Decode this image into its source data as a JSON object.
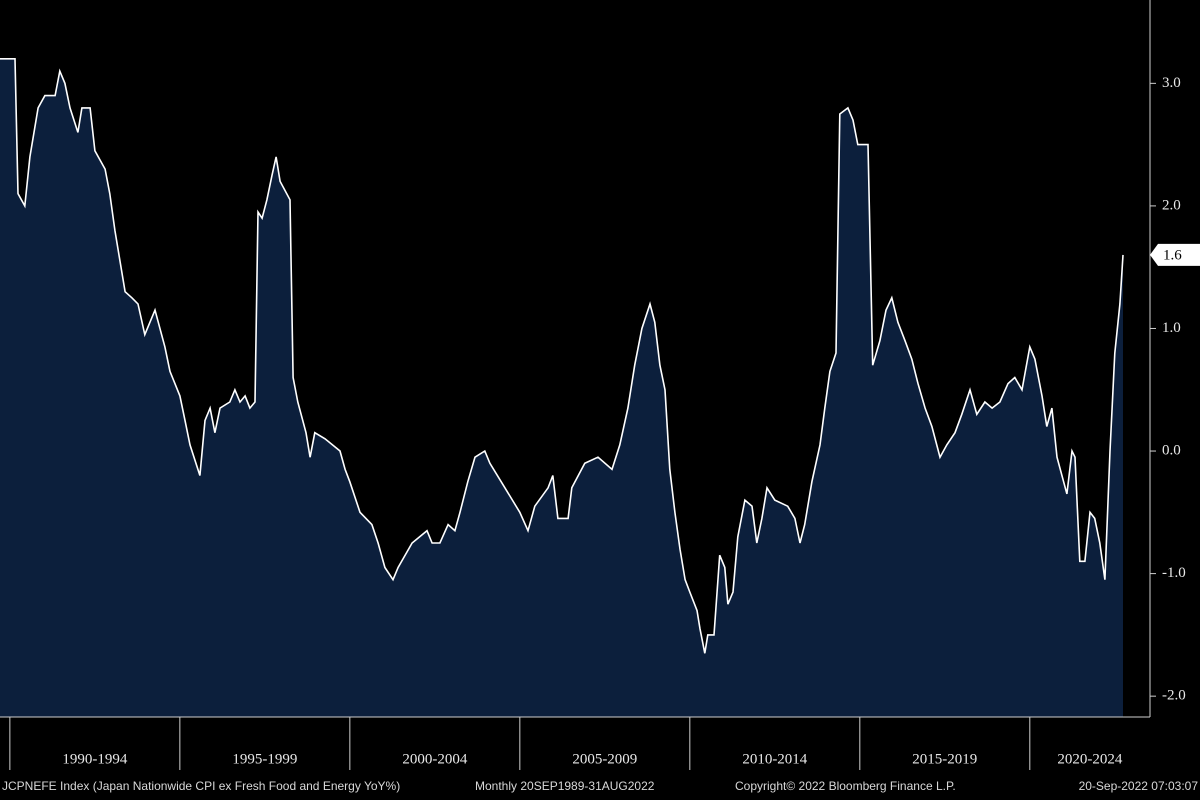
{
  "chart_data": {
    "type": "area",
    "source": "JCPNEFE Index (Japan Nationwide CPI ex Fresh Food and Energy YoY%)",
    "period": "Monthly 20SEP1989-31AUG2022",
    "copyright": "Copyright© 2022 Bloomberg Finance L.P.",
    "timestamp": "20-Sep-2022 07:03:07",
    "xlim": [
      1989.71,
      2022.8
    ],
    "xticks": [
      {
        "value": 1990,
        "label": "1990-1994"
      },
      {
        "value": 1995,
        "label": "1995-1999"
      },
      {
        "value": 2000,
        "label": "2000-2004"
      },
      {
        "value": 2005,
        "label": "2005-2009"
      },
      {
        "value": 2010,
        "label": "2010-2014"
      },
      {
        "value": 2015,
        "label": "2015-2019"
      },
      {
        "value": 2020,
        "label": "2020-2024"
      }
    ],
    "ylim": [
      -2.17,
      3.68
    ],
    "yticks": [
      {
        "value": -2,
        "label": "-2.0"
      },
      {
        "value": -1,
        "label": "-1.0"
      },
      {
        "value": 0,
        "label": "0.0"
      },
      {
        "value": 1,
        "label": "1.0"
      },
      {
        "value": 2,
        "label": "2.0"
      },
      {
        "value": 3,
        "label": "3.0"
      }
    ],
    "series": [
      {
        "color": "#0c1f3c",
        "line_color": "#ffffff",
        "x": [
          1989.71,
          1990.15,
          1990.24,
          1990.44,
          1990.59,
          1990.83,
          1991.03,
          1991.33,
          1991.47,
          1991.62,
          1991.77,
          1992.0,
          1992.12,
          1992.36,
          1992.5,
          1992.8,
          1992.94,
          1993.09,
          1993.24,
          1993.39,
          1993.59,
          1993.77,
          1993.97,
          1994.27,
          1994.56,
          1994.71,
          1995.0,
          1995.15,
          1995.3,
          1995.59,
          1995.74,
          1995.89,
          1996.03,
          1996.18,
          1996.47,
          1996.62,
          1996.77,
          1996.92,
          1997.06,
          1997.21,
          1997.3,
          1997.42,
          1997.56,
          1997.71,
          1997.83,
          1997.95,
          1998.24,
          1998.33,
          1998.47,
          1998.71,
          1998.83,
          1998.97,
          1999.27,
          1999.71,
          1999.86,
          2000.0,
          2000.3,
          2000.65,
          2000.83,
          2001.03,
          2001.27,
          2001.42,
          2001.83,
          2002.27,
          2002.42,
          2002.65,
          2002.89,
          2003.09,
          2003.24,
          2003.47,
          2003.68,
          2003.97,
          2004.12,
          2004.56,
          2005.0,
          2005.24,
          2005.44,
          2005.83,
          2005.97,
          2006.12,
          2006.42,
          2006.53,
          2006.91,
          2007.3,
          2007.71,
          2007.94,
          2008.18,
          2008.38,
          2008.59,
          2008.83,
          2008.97,
          2009.12,
          2009.27,
          2009.41,
          2009.56,
          2009.71,
          2009.86,
          2010.0,
          2010.21,
          2010.3,
          2010.44,
          2010.53,
          2010.71,
          2010.88,
          2011.03,
          2011.12,
          2011.27,
          2011.41,
          2011.62,
          2011.83,
          2011.97,
          2012.12,
          2012.27,
          2012.5,
          2012.88,
          2013.09,
          2013.24,
          2013.38,
          2013.59,
          2013.83,
          2013.97,
          2014.12,
          2014.3,
          2014.41,
          2014.65,
          2014.8,
          2014.94,
          2015.24,
          2015.38,
          2015.59,
          2015.77,
          2015.94,
          2016.12,
          2016.33,
          2016.53,
          2016.71,
          2016.92,
          2017.12,
          2017.36,
          2017.56,
          2017.8,
          2018.0,
          2018.24,
          2018.44,
          2018.68,
          2018.89,
          2019.12,
          2019.36,
          2019.56,
          2019.77,
          2020.0,
          2020.15,
          2020.36,
          2020.5,
          2020.65,
          2020.8,
          2021.09,
          2021.24,
          2021.33,
          2021.47,
          2021.62,
          2021.77,
          2021.91,
          2022.06,
          2022.21,
          2022.36,
          2022.5,
          2022.65,
          2022.74
        ],
        "values": [
          3.2,
          3.2,
          2.1,
          2.0,
          2.4,
          2.8,
          2.9,
          2.9,
          3.1,
          3.0,
          2.8,
          2.6,
          2.8,
          2.8,
          2.45,
          2.3,
          2.1,
          1.8,
          1.55,
          1.3,
          1.25,
          1.2,
          0.95,
          1.15,
          0.85,
          0.65,
          0.45,
          0.25,
          0.05,
          -0.2,
          0.25,
          0.35,
          0.15,
          0.35,
          0.4,
          0.5,
          0.4,
          0.45,
          0.35,
          0.4,
          1.95,
          1.9,
          2.05,
          2.25,
          2.4,
          2.2,
          2.05,
          0.6,
          0.4,
          0.15,
          -0.05,
          0.15,
          0.1,
          0.0,
          -0.15,
          -0.25,
          -0.5,
          -0.6,
          -0.75,
          -0.95,
          -1.05,
          -0.95,
          -0.75,
          -0.65,
          -0.75,
          -0.75,
          -0.6,
          -0.65,
          -0.5,
          -0.25,
          -0.05,
          0.0,
          -0.1,
          -0.3,
          -0.5,
          -0.65,
          -0.45,
          -0.3,
          -0.2,
          -0.55,
          -0.55,
          -0.3,
          -0.1,
          -0.05,
          -0.15,
          0.05,
          0.35,
          0.7,
          1.0,
          1.2,
          1.05,
          0.7,
          0.5,
          -0.15,
          -0.5,
          -0.8,
          -1.05,
          -1.15,
          -1.3,
          -1.45,
          -1.65,
          -1.5,
          -1.5,
          -0.85,
          -0.95,
          -1.25,
          -1.15,
          -0.7,
          -0.4,
          -0.45,
          -0.75,
          -0.55,
          -0.3,
          -0.4,
          -0.45,
          -0.55,
          -0.75,
          -0.6,
          -0.25,
          0.05,
          0.35,
          0.65,
          0.8,
          2.75,
          2.8,
          2.7,
          2.5,
          2.5,
          0.7,
          0.9,
          1.15,
          1.25,
          1.05,
          0.9,
          0.75,
          0.55,
          0.35,
          0.2,
          -0.05,
          0.05,
          0.15,
          0.3,
          0.5,
          0.3,
          0.4,
          0.35,
          0.4,
          0.55,
          0.6,
          0.5,
          0.85,
          0.75,
          0.45,
          0.2,
          0.35,
          -0.05,
          -0.35,
          0.0,
          -0.05,
          -0.9,
          -0.9,
          -0.5,
          -0.55,
          -0.75,
          -1.05,
          0.0,
          0.8,
          1.2,
          1.6
        ]
      }
    ]
  }
}
